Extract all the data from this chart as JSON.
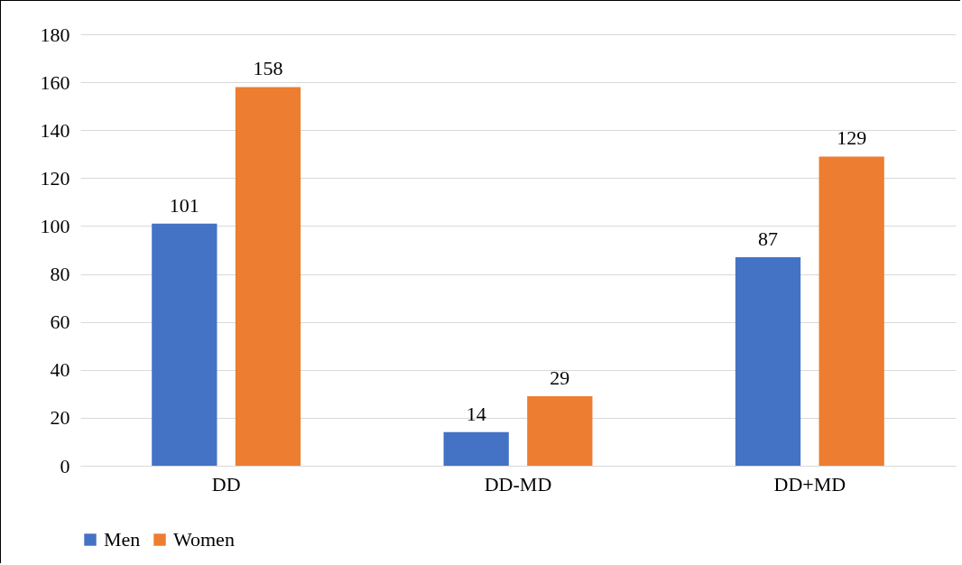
{
  "chart_data": {
    "type": "bar",
    "categories": [
      "DD",
      "DD-MD",
      "DD+MD"
    ],
    "series": [
      {
        "name": "Men",
        "color": "#4472c4",
        "values": [
          101,
          14,
          87
        ]
      },
      {
        "name": "Women",
        "color": "#ed7d31",
        "values": [
          158,
          29,
          129
        ]
      }
    ],
    "ylim": [
      0,
      180
    ],
    "yticks": [
      0,
      20,
      40,
      60,
      80,
      100,
      120,
      140,
      160,
      180
    ],
    "grid": "y",
    "legend": "bottom",
    "data_labels": true
  }
}
